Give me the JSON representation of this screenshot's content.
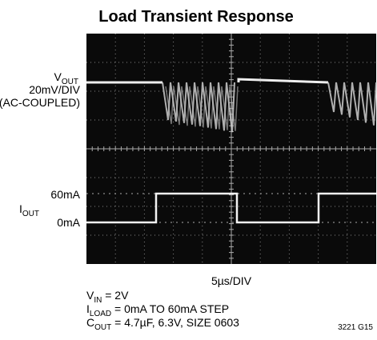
{
  "title": "Load Transient Response",
  "left_labels": {
    "vout": {
      "main": "V",
      "sub": "OUT"
    },
    "vout_scale": "20mV/DIV",
    "vout_coupling": "(AC-COUPLED)",
    "iout_high": "60mA",
    "iout": {
      "main": "I",
      "sub": "OUT"
    },
    "iout_low": "0mA"
  },
  "x_scale": "5µs/DIV",
  "conditions": [
    {
      "main": "V",
      "sub": "IN",
      "rest": " = 2V"
    },
    {
      "main": "I",
      "sub": "LOAD",
      "rest": " = 0mA TO 60mA STEP"
    },
    {
      "main": "C",
      "sub": "OUT",
      "rest": " = 4.7µF, 6.3V, SIZE 0603"
    }
  ],
  "figure_id": "3221 G15"
}
